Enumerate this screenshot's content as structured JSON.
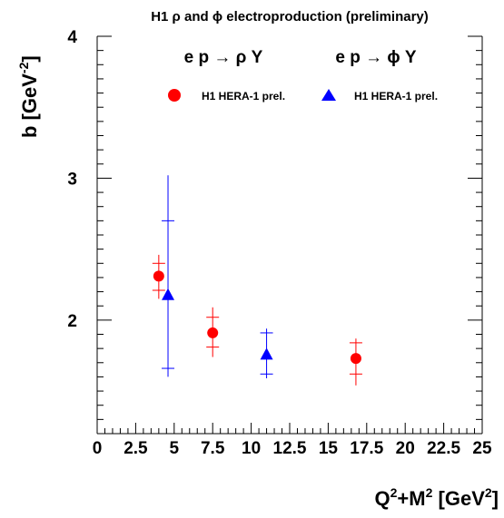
{
  "chart_data": {
    "type": "scatter",
    "title": "H1 ρ and ϕ electroproduction (preliminary)",
    "ylabel": {
      "main": "b [GeV",
      "sup": "-2",
      "close": "]"
    },
    "xlabel": {
      "q": "Q",
      "q_sup": "2",
      "plus_m": "+M",
      "m_sup": "2",
      "unit_open": " [GeV",
      "unit_sup": "2",
      "unit_close": "]"
    },
    "xlim": [
      0,
      25
    ],
    "ylim": [
      1.2,
      4.0
    ],
    "x_ticks": [
      0,
      2.5,
      5,
      7.5,
      10,
      12.5,
      15,
      17.5,
      20,
      22.5,
      25
    ],
    "x_tick_labels": [
      "0",
      "2.5",
      "5",
      "7.5",
      "10",
      "12.5",
      "15",
      "17.5",
      "20",
      "22.5",
      "25"
    ],
    "y_ticks": [
      2,
      3,
      4
    ],
    "y_tick_labels": [
      "2",
      "3",
      "4"
    ],
    "legend_position": "top",
    "grid": false,
    "series": [
      {
        "name": "H1 HERA-1 prel.",
        "process": "e p → ρ Y",
        "color": "#ff0000",
        "marker": "circle",
        "points": [
          {
            "x": 4.0,
            "y": 2.31,
            "stat": [
              2.21,
              2.4
            ],
            "total": [
              2.15,
              2.46
            ]
          },
          {
            "x": 7.5,
            "y": 1.91,
            "stat": [
              1.81,
              2.02
            ],
            "total": [
              1.74,
              2.09
            ]
          },
          {
            "x": 16.8,
            "y": 1.73,
            "stat": [
              1.62,
              1.84
            ],
            "total": [
              1.54,
              1.87
            ]
          }
        ]
      },
      {
        "name": "H1 HERA-1 prel.",
        "process": "e p → ϕ Y",
        "color": "#0000ff",
        "marker": "triangle",
        "points": [
          {
            "x": 4.6,
            "y": 2.18,
            "stat": [
              1.66,
              2.7
            ],
            "total": [
              1.6,
              3.02
            ]
          },
          {
            "x": 11.0,
            "y": 1.76,
            "stat": [
              1.62,
              1.91
            ],
            "total": [
              1.59,
              1.94
            ]
          }
        ]
      }
    ]
  }
}
